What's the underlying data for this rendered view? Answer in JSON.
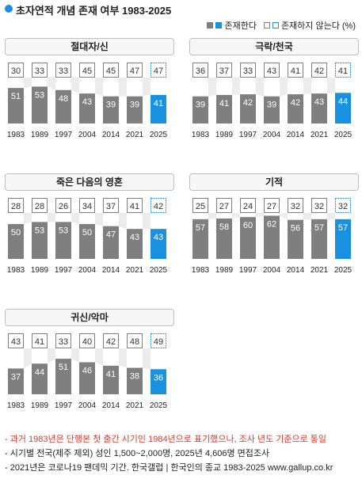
{
  "header": {
    "title": "초자연적 개념 존재 여부 1983-2025"
  },
  "legend": {
    "exists_label": "존재한다",
    "not_exists_label": "존재하지 않는다 (%)"
  },
  "colors": {
    "exists_gray": "#7f7f7f",
    "exists_blue": "#1a90e0",
    "outline_gray": "#7f7f7f",
    "outline_blue": "#1a90e0",
    "connector": "#ececec"
  },
  "chart_data": [
    {
      "type": "bar",
      "title": "절대자/신",
      "categories": [
        "1983",
        "1989",
        "1997",
        "2004",
        "2014",
        "2021",
        "2025"
      ],
      "series": [
        {
          "name": "존재한다",
          "values": [
            51,
            53,
            48,
            43,
            39,
            39,
            41
          ]
        },
        {
          "name": "존재하지 않는다",
          "values": [
            30,
            33,
            33,
            45,
            45,
            47,
            47
          ]
        }
      ]
    },
    {
      "type": "bar",
      "title": "극락/천국",
      "categories": [
        "1983",
        "1989",
        "1997",
        "2004",
        "2014",
        "2021",
        "2025"
      ],
      "series": [
        {
          "name": "존재한다",
          "values": [
            39,
            41,
            42,
            39,
            42,
            43,
            44
          ]
        },
        {
          "name": "존재하지 않는다",
          "values": [
            36,
            37,
            33,
            43,
            41,
            42,
            41
          ]
        }
      ]
    },
    {
      "type": "bar",
      "title": "죽은 다음의 영혼",
      "categories": [
        "1983",
        "1989",
        "1997",
        "2004",
        "2014",
        "2021",
        "2025"
      ],
      "series": [
        {
          "name": "존재한다",
          "values": [
            50,
            53,
            53,
            50,
            47,
            43,
            43
          ]
        },
        {
          "name": "존재하지 않는다",
          "values": [
            28,
            28,
            26,
            34,
            37,
            41,
            42
          ]
        }
      ]
    },
    {
      "type": "bar",
      "title": "기적",
      "categories": [
        "1983",
        "1989",
        "1997",
        "2004",
        "2014",
        "2021",
        "2025"
      ],
      "series": [
        {
          "name": "존재한다",
          "values": [
            57,
            58,
            60,
            62,
            56,
            57,
            57
          ]
        },
        {
          "name": "존재하지 않는다",
          "values": [
            25,
            27,
            24,
            27,
            32,
            32,
            32
          ]
        }
      ]
    },
    {
      "type": "bar",
      "title": "귀신/악마",
      "categories": [
        "1983",
        "1989",
        "1997",
        "2004",
        "2014",
        "2021",
        "2025"
      ],
      "series": [
        {
          "name": "존재한다",
          "values": [
            37,
            44,
            51,
            46,
            41,
            38,
            36
          ]
        },
        {
          "name": "존재하지 않는다",
          "values": [
            43,
            41,
            33,
            40,
            42,
            48,
            49
          ]
        }
      ]
    }
  ],
  "notes": [
    "- 과거 1983년은 단행본 첫 출간 시기인 1984년으로 표기했으나, 조사 년도 기준으로 통일",
    "- 시기별 전국(제주 제외) 성인 1,500~2,000명, 2025년 4,606명 면접조사",
    "- 2021년은 코로나19 팬데믹 기간. 한국갤럽 | 한국인의 종교 1983-2025 www.gallup.co.kr"
  ]
}
